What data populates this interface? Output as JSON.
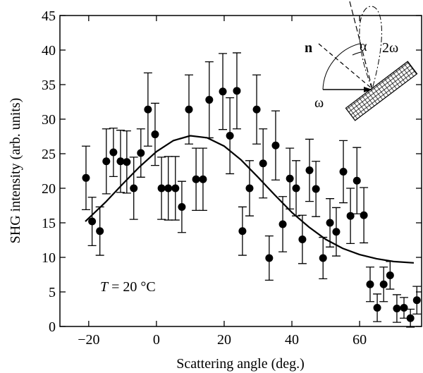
{
  "chart_data": {
    "type": "scatter",
    "xlabel": "Scattering angle  (deg.)",
    "ylabel": "SHG intensity  (arb. units)",
    "xlim": [
      -28.5,
      78.3
    ],
    "ylim": [
      0,
      45
    ],
    "xticks": [
      {
        "value": -20,
        "label": "−20"
      },
      0,
      20,
      40,
      60
    ],
    "yticks": [
      0,
      5,
      10,
      15,
      20,
      25,
      30,
      35,
      40,
      45
    ],
    "annotation": {
      "symbol": "T",
      "text": "= 20 °C"
    },
    "inset": {
      "normal": "n",
      "angle": "α",
      "second_harmonic": "2ω",
      "fundamental": "ω"
    },
    "series": [
      {
        "mode": "markers",
        "color": "#000000",
        "x": [
          -20.8,
          -19,
          -16.7,
          -14.8,
          -12.7,
          -10.6,
          -8.75,
          -6.7,
          -4.6,
          -2.5,
          -0.4,
          1.5,
          3.5,
          5.6,
          7.5,
          9.6,
          11.7,
          13.75,
          15.6,
          19.6,
          21.7,
          23.75,
          25.4,
          27.5,
          29.6,
          31.5,
          33.3,
          35.2,
          37.3,
          39.4,
          41.25,
          43.1,
          45.2,
          47.1,
          49.2,
          51.25,
          53.1,
          55.2,
          57.3,
          59.2,
          61.25,
          63.1,
          65.2,
          67.1,
          69,
          71,
          73.1,
          75,
          76.9
        ],
        "values": [
          21.5,
          15.2,
          13.8,
          23.9,
          25.2,
          23.9,
          23.8,
          20,
          25.1,
          31.4,
          27.8,
          20,
          20,
          20,
          17.3,
          31.4,
          21.3,
          21.3,
          32.8,
          34,
          27.6,
          34.1,
          13.8,
          20,
          31.4,
          23.6,
          9.9,
          26.2,
          14.8,
          21.4,
          20,
          12.6,
          22.6,
          19.9,
          9.9,
          15,
          13.7,
          22.4,
          16,
          21.1,
          16.1,
          6.1,
          2.7,
          6.1,
          7.4,
          2.6,
          2.7,
          1.2,
          3.8
        ],
        "errors": [
          4.6,
          3.5,
          3.5,
          4.7,
          3.5,
          4.5,
          4.5,
          4.5,
          3.5,
          5.3,
          4.5,
          4.5,
          4.6,
          4.6,
          3.7,
          5,
          4.5,
          4.5,
          5.5,
          5.5,
          5.5,
          5.5,
          3.5,
          4,
          5,
          5,
          3.2,
          5,
          4,
          4.4,
          4,
          3.5,
          4.5,
          4,
          3,
          3.5,
          3.5,
          4.5,
          4,
          4.8,
          4,
          2.5,
          2,
          2.5,
          2,
          2,
          1.5,
          1.3,
          2
        ]
      },
      {
        "mode": "line",
        "color": "#000000",
        "x": [
          -21,
          -15,
          -10,
          -5,
          0,
          5,
          10,
          15,
          20,
          25,
          30,
          35,
          40,
          45,
          50,
          55,
          60,
          65,
          70,
          76
        ],
        "values": [
          15.2,
          18.0,
          20.6,
          23.1,
          25.3,
          26.9,
          27.6,
          27.3,
          26.1,
          24.1,
          21.6,
          19.0,
          16.5,
          14.4,
          12.6,
          11.3,
          10.4,
          9.8,
          9.4,
          9.2
        ]
      }
    ]
  }
}
